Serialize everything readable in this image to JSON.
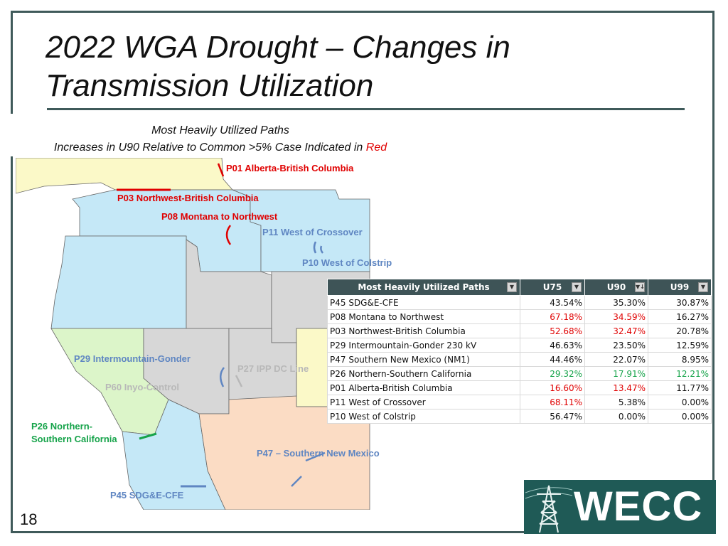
{
  "slide": {
    "title": "2022 WGA Drought – Changes in Transmission Utilization",
    "subtitle_line1": "Most Heavily Utilized Paths",
    "subtitle_line2_prefix": "Increases in U90 Relative to Common >5% Case Indicated in ",
    "subtitle_line2_highlight": "Red",
    "page_number": "18"
  },
  "map": {
    "labels": {
      "p01": "P01 Alberta-British Columbia",
      "p03": "P03 Northwest-British Columbia",
      "p08": "P08 Montana to Northwest",
      "p11": "P11 West of Crossover",
      "p10": "P10 West of Colstrip",
      "p29": "P29 Intermountain-Gonder",
      "p27": "P27 IPP DC Line",
      "p60": "P60 Inyo-Control",
      "p26_line1": "P26 Northern-",
      "p26_line2": "Southern California",
      "p47": "P47 – Southern New Mexico",
      "p45": "P45 SDG&E-CFE"
    },
    "colors": {
      "increase": "#e00000",
      "other": "#5f86c2",
      "decrease": "#16a34a",
      "inactive": "#b8b8b8"
    }
  },
  "table": {
    "headers": [
      "Most Heavily Utilized Paths",
      "U75",
      "U90",
      "U99"
    ],
    "rows": [
      {
        "path": "P45 SDG&E-CFE",
        "u75": "43.54%",
        "u90": "35.30%",
        "u99": "30.87%"
      },
      {
        "path": "P08 Montana to Northwest",
        "u75": "67.18%",
        "u90": "34.59%",
        "u99": "16.27%"
      },
      {
        "path": "P03 Northwest-British Columbia",
        "u75": "52.68%",
        "u90": "32.47%",
        "u99": "20.78%"
      },
      {
        "path": "P29 Intermountain-Gonder 230 kV",
        "u75": "46.63%",
        "u90": "23.50%",
        "u99": "12.59%"
      },
      {
        "path": "P47 Southern New Mexico (NM1)",
        "u75": "44.46%",
        "u90": "22.07%",
        "u99": "8.95%"
      },
      {
        "path": "P26 Northern-Southern California",
        "u75": "29.32%",
        "u90": "17.91%",
        "u99": "12.21%"
      },
      {
        "path": "P01 Alberta-British Columbia",
        "u75": "16.60%",
        "u90": "13.47%",
        "u99": "11.77%"
      },
      {
        "path": "P11 West of Crossover",
        "u75": "68.11%",
        "u90": "5.38%",
        "u99": "0.00%"
      },
      {
        "path": "P10 West of Colstrip",
        "u75": "56.47%",
        "u90": "0.00%",
        "u99": "0.00%"
      }
    ],
    "colors": {
      "header_bg": "#3e5457",
      "red": "#e00000",
      "green": "#16a34a"
    }
  },
  "logo": {
    "text": "WECC",
    "background": "#1f5a56",
    "icon": "transmission-tower-icon"
  }
}
